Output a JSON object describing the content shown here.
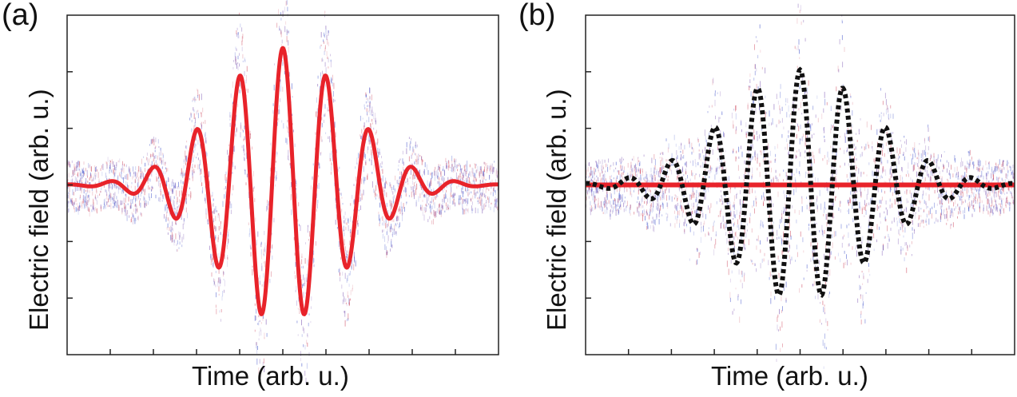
{
  "chart_data": [
    {
      "type": "line",
      "panel_label": "(a)",
      "xlabel": "Time (arb. u.)",
      "ylabel": "Electric field (arb. u.)",
      "xlim": [
        0,
        10
      ],
      "ylim": [
        -1.55,
        1.55
      ],
      "grid": false,
      "legend": "none",
      "x_ticks": 10,
      "y_ticks": 5,
      "waveform": {
        "name": "",
        "center": 5.0,
        "period": 1.0,
        "amplitude": 1.25,
        "envelope_width": 2.1,
        "color": "#e8232a"
      },
      "noise_band": {
        "half_width": 0.22,
        "envelope_gain": 1.35,
        "colors": [
          "#2b3fc4",
          "#6b3fa8",
          "#c8324a"
        ]
      }
    },
    {
      "type": "line",
      "panel_label": "(b)",
      "xlabel": "Time (arb. u.)",
      "ylabel": "Electric field (arb. u.)",
      "xlim": [
        0,
        10
      ],
      "ylim": [
        -1.55,
        1.55
      ],
      "grid": false,
      "legend": "none",
      "x_ticks": 10,
      "y_ticks": 5,
      "waveform": {
        "name": "",
        "center": 5.0,
        "period": 1.0,
        "amplitude": 1.05,
        "envelope_width": 2.4,
        "style": "dotted",
        "color": "#111111"
      },
      "mean_line": {
        "value": 0.0,
        "color": "#e8232a"
      },
      "noise_band": {
        "half_width": 0.22,
        "envelope_gain": 1.55,
        "colors": [
          "#2b3fc4",
          "#6b3fa8",
          "#c8324a"
        ]
      }
    }
  ]
}
